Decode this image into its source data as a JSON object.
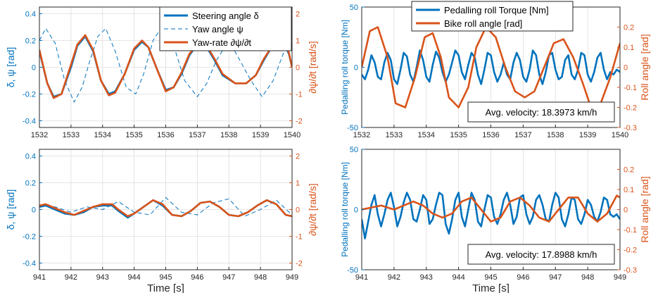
{
  "colors": {
    "blue": "#0072BD",
    "orange": "#D95319",
    "grid": "#DCDCDC",
    "axis": "#262626"
  },
  "xlabel_text": "Time [s]",
  "chart_data": [
    {
      "type": "line",
      "xlim": [
        1532,
        1540
      ],
      "xticks": [
        "1532",
        "1533",
        "1534",
        "1535",
        "1536",
        "1537",
        "1538",
        "1539",
        "1540"
      ],
      "ylim_left": [
        -0.45,
        0.45
      ],
      "yticks_left": [
        "0.4",
        "0.2",
        "0",
        "-0.2",
        "-0.4"
      ],
      "ylabel_left": "δ, ψ [rad]",
      "ylim_right": [
        -2.25,
        2.25
      ],
      "yticks_right": [
        "2",
        "1",
        "0",
        "-1",
        "-2"
      ],
      "ylabel_right": "∂ψ/∂t [rad/s]",
      "xlabel": "",
      "grid": true,
      "legend_position": "top-right",
      "series": [
        {
          "name": "Steering angle δ",
          "axis": "left",
          "style": "solid-blue",
          "x": [
            1532,
            1532.25,
            1532.45,
            1532.7,
            1533,
            1533.2,
            1533.45,
            1533.7,
            1533.95,
            1534.2,
            1534.4,
            1534.7,
            1535,
            1535.25,
            1535.45,
            1535.7,
            1536,
            1536.25,
            1536.5,
            1536.75,
            1537,
            1537.25,
            1537.55,
            1537.8,
            1538.2,
            1538.55,
            1538.85,
            1539.1,
            1539.4,
            1539.7,
            1539.9,
            1540
          ],
          "y": [
            0.12,
            -0.12,
            -0.22,
            -0.2,
            0.0,
            0.16,
            0.23,
            0.12,
            -0.1,
            -0.2,
            -0.18,
            -0.05,
            0.13,
            0.19,
            0.15,
            0.0,
            -0.17,
            -0.15,
            -0.05,
            0.09,
            0.17,
            0.17,
            0.05,
            -0.06,
            -0.12,
            -0.12,
            -0.06,
            0.05,
            0.17,
            0.2,
            0.1,
            0.0
          ]
        },
        {
          "name": "Yaw angle ψ",
          "axis": "left",
          "style": "dashed-blue",
          "x": [
            1532,
            1532.2,
            1532.5,
            1532.8,
            1533.1,
            1533.35,
            1533.6,
            1533.85,
            1534.1,
            1534.4,
            1534.75,
            1535.05,
            1535.3,
            1535.6,
            1535.9,
            1536.2,
            1536.6,
            1537,
            1537.3,
            1537.6,
            1538,
            1538.35,
            1538.7,
            1539.05,
            1539.4,
            1539.75,
            1540
          ],
          "y": [
            0.2,
            0.29,
            0.18,
            -0.1,
            -0.26,
            -0.15,
            0.05,
            0.23,
            0.29,
            0.12,
            -0.15,
            -0.2,
            -0.05,
            0.2,
            0.31,
            0.2,
            -0.1,
            -0.22,
            -0.12,
            0.05,
            0.2,
            0.05,
            -0.1,
            -0.22,
            -0.1,
            0.12,
            0.34
          ]
        },
        {
          "name": "Yaw-rate ∂ψ/∂t",
          "axis": "right",
          "style": "solid-orange",
          "x": [
            1532,
            1532.25,
            1532.45,
            1532.7,
            1533,
            1533.2,
            1533.45,
            1533.7,
            1533.95,
            1534.2,
            1534.4,
            1534.7,
            1535,
            1535.25,
            1535.45,
            1535.7,
            1536,
            1536.25,
            1536.5,
            1536.75,
            1537,
            1537.25,
            1537.55,
            1537.8,
            1538.2,
            1538.55,
            1538.85,
            1539.1,
            1539.4,
            1539.7,
            1539.9,
            1540
          ],
          "y": [
            0.65,
            -0.6,
            -1.15,
            -1.0,
            0.1,
            0.85,
            1.2,
            0.65,
            -0.5,
            -1.05,
            -0.95,
            -0.25,
            0.7,
            1.0,
            0.75,
            0.0,
            -0.9,
            -0.75,
            -0.2,
            0.5,
            0.85,
            0.9,
            0.3,
            -0.25,
            -0.6,
            -0.6,
            -0.3,
            0.3,
            0.85,
            1.05,
            0.55,
            0.0
          ]
        }
      ]
    },
    {
      "type": "line",
      "xlim": [
        1532,
        1540
      ],
      "xticks": [
        "1532",
        "1533",
        "1534",
        "1535",
        "1536",
        "1537",
        "1538",
        "1539",
        "1540"
      ],
      "ylim_left": [
        -50,
        50
      ],
      "yticks_left": [
        "50",
        "0",
        "-50"
      ],
      "ylabel_left": "Pedalling roll torque [Nm]",
      "ylim_right": [
        -0.3,
        0.3
      ],
      "yticks_right": [
        "0.2",
        "0.1",
        "0",
        "-0.1",
        "-0.2",
        "-0.3"
      ],
      "ylabel_right": "Roll angle [rad]",
      "xlabel": "",
      "grid": true,
      "legend_position": "top",
      "annotation": "Avg. velocity: 18.3973 km/h",
      "series": [
        {
          "name": "Pedalling roll Torque [Nm]",
          "axis": "left",
          "style": "solid-blue",
          "x": [
            1532,
            1532.1,
            1532.2,
            1532.3,
            1532.4,
            1532.5,
            1532.6,
            1532.7,
            1532.8,
            1532.9,
            1533,
            1533.1,
            1533.2,
            1533.3,
            1533.4,
            1533.5,
            1533.6,
            1533.7,
            1533.8,
            1533.9,
            1534,
            1534.1,
            1534.2,
            1534.3,
            1534.4,
            1534.5,
            1534.6,
            1534.7,
            1534.8,
            1534.9,
            1535,
            1535.1,
            1535.2,
            1535.3,
            1535.4,
            1535.5,
            1535.6,
            1535.7,
            1535.8,
            1535.9,
            1536,
            1536.1,
            1536.2,
            1536.3,
            1536.4,
            1536.5,
            1536.6,
            1536.7,
            1536.8,
            1536.9,
            1537,
            1537.1,
            1537.2,
            1537.3,
            1537.4,
            1537.5,
            1537.6,
            1537.7,
            1537.8,
            1537.9,
            1538,
            1538.1,
            1538.2,
            1538.3,
            1538.4,
            1538.5,
            1538.6,
            1538.7,
            1538.8,
            1538.9,
            1539,
            1539.1,
            1539.2,
            1539.3,
            1539.4,
            1539.5,
            1539.6,
            1539.7,
            1539.8,
            1539.9,
            1540
          ],
          "y": [
            -6,
            -10,
            -2,
            10,
            4,
            -8,
            -10,
            4,
            12,
            6,
            -10,
            -14,
            -2,
            12,
            9,
            -6,
            -12,
            0,
            14,
            6,
            -8,
            -12,
            2,
            13,
            8,
            -4,
            -12,
            -6,
            4,
            14,
            10,
            -4,
            -10,
            2,
            12,
            8,
            -6,
            -14,
            -2,
            12,
            10,
            -4,
            -12,
            -6,
            4,
            -6,
            -10,
            4,
            12,
            6,
            -8,
            -12,
            -2,
            14,
            10,
            -6,
            -14,
            -4,
            10,
            12,
            -2,
            -10,
            -8,
            6,
            10,
            -6,
            -10,
            -2,
            12,
            10,
            -6,
            -12,
            -4,
            8,
            12,
            -2,
            -10,
            -4,
            -6,
            -2,
            -4
          ]
        },
        {
          "name": "Bike roll angle [rad]",
          "axis": "right",
          "style": "solid-orange",
          "x": [
            1532,
            1532.25,
            1532.5,
            1532.8,
            1533.05,
            1533.35,
            1533.65,
            1533.95,
            1534.2,
            1534.45,
            1534.7,
            1535,
            1535.3,
            1535.55,
            1535.85,
            1536.15,
            1536.45,
            1536.75,
            1537.05,
            1537.35,
            1537.65,
            1537.95,
            1538.25,
            1538.55,
            1538.85,
            1539.1,
            1539.4,
            1539.7,
            1540
          ],
          "y": [
            0.0,
            0.18,
            0.2,
            0.05,
            -0.18,
            -0.2,
            -0.05,
            0.15,
            0.17,
            0.05,
            -0.15,
            -0.2,
            -0.1,
            0.1,
            0.2,
            0.15,
            0.0,
            -0.12,
            -0.15,
            -0.12,
            0.0,
            0.12,
            0.14,
            0.05,
            -0.08,
            -0.2,
            -0.18,
            -0.05,
            0.12
          ]
        }
      ]
    },
    {
      "type": "line",
      "xlim": [
        941,
        949
      ],
      "xticks": [
        "941",
        "942",
        "943",
        "944",
        "945",
        "946",
        "947",
        "948",
        "949"
      ],
      "ylim_left": [
        -0.45,
        0.45
      ],
      "yticks_left": [
        "0.4",
        "0.2",
        "0",
        "-0.2",
        "-0.4"
      ],
      "ylabel_left": "δ, ψ [rad]",
      "ylim_right": [
        -2.25,
        2.25
      ],
      "yticks_right": [
        "2",
        "1",
        "0",
        "-1",
        "-2"
      ],
      "ylabel_right": "∂ψ/∂t [rad/s]",
      "xlabel": "Time [s]",
      "grid": true,
      "series": [
        {
          "name": "Steering angle δ",
          "axis": "left",
          "style": "solid-blue",
          "x": [
            941,
            941.2,
            941.5,
            941.8,
            942.1,
            942.4,
            942.7,
            943,
            943.3,
            943.5,
            943.8,
            944,
            944.3,
            944.6,
            944.9,
            945.2,
            945.5,
            945.8,
            946.1,
            946.4,
            946.7,
            947,
            947.3,
            947.6,
            947.9,
            948.2,
            948.5,
            948.8,
            949
          ],
          "y": [
            0.02,
            0.03,
            0.0,
            -0.03,
            -0.04,
            -0.02,
            0.02,
            0.03,
            0.03,
            -0.01,
            -0.06,
            -0.03,
            0.02,
            0.07,
            0.03,
            -0.04,
            -0.05,
            -0.01,
            0.05,
            0.06,
            0.02,
            -0.04,
            -0.05,
            -0.02,
            0.03,
            0.07,
            0.04,
            -0.04,
            -0.05
          ]
        },
        {
          "name": "Yaw angle ψ",
          "axis": "left",
          "style": "dashed-blue",
          "x": [
            941,
            941.5,
            942,
            942.5,
            943,
            943.5,
            944,
            944.5,
            945,
            945.5,
            946,
            946.5,
            947,
            947.5,
            948,
            948.5,
            949
          ],
          "y": [
            0.03,
            0.02,
            -0.02,
            0.02,
            0.0,
            0.06,
            -0.02,
            -0.04,
            0.09,
            -0.02,
            -0.04,
            0.05,
            0.08,
            -0.05,
            0.0,
            0.07,
            -0.04
          ]
        },
        {
          "name": "Yaw-rate ∂ψ/∂t",
          "axis": "right",
          "style": "solid-orange",
          "x": [
            941,
            941.2,
            941.5,
            941.8,
            942.1,
            942.4,
            942.7,
            943,
            943.3,
            943.5,
            943.8,
            944,
            944.3,
            944.6,
            944.9,
            945.2,
            945.5,
            945.8,
            946.1,
            946.4,
            946.7,
            947,
            947.3,
            947.6,
            947.9,
            948.2,
            948.5,
            948.8,
            949
          ],
          "y": [
            0.15,
            0.2,
            0.05,
            -0.1,
            -0.2,
            -0.05,
            0.1,
            0.2,
            0.2,
            0.0,
            -0.25,
            -0.15,
            0.1,
            0.35,
            0.2,
            -0.2,
            -0.25,
            -0.05,
            0.25,
            0.3,
            0.1,
            -0.2,
            -0.25,
            -0.1,
            0.15,
            0.35,
            0.2,
            -0.2,
            -0.25
          ]
        }
      ]
    },
    {
      "type": "line",
      "xlim": [
        941,
        949
      ],
      "xticks": [
        "941",
        "942",
        "943",
        "944",
        "945",
        "946",
        "947",
        "948",
        "949"
      ],
      "ylim_left": [
        -50,
        50
      ],
      "yticks_left": [
        "50",
        "0",
        "-50"
      ],
      "ylabel_left": "Pedalling roll torque [Nm]",
      "ylim_right": [
        -0.3,
        0.3
      ],
      "yticks_right": [
        "0.2",
        "0.1",
        "0",
        "-0.1",
        "-0.2",
        "-0.3"
      ],
      "ylabel_right": "Roll angle [rad]",
      "xlabel": "Time [s]",
      "grid": true,
      "annotation": "Avg. velocity: 17.8988 km/h",
      "series": [
        {
          "name": "Pedalling roll Torque [Nm]",
          "axis": "left",
          "style": "solid-blue",
          "x": [
            941,
            941.1,
            941.2,
            941.3,
            941.4,
            941.5,
            941.6,
            941.7,
            941.8,
            941.9,
            942,
            942.1,
            942.2,
            942.3,
            942.4,
            942.5,
            942.6,
            942.7,
            942.8,
            942.9,
            943,
            943.1,
            943.2,
            943.3,
            943.4,
            943.5,
            943.6,
            943.7,
            943.8,
            943.9,
            944,
            944.1,
            944.2,
            944.3,
            944.4,
            944.5,
            944.6,
            944.7,
            944.8,
            944.9,
            945,
            945.1,
            945.2,
            945.3,
            945.4,
            945.5,
            945.6,
            945.7,
            945.8,
            945.9,
            946,
            946.1,
            946.2,
            946.3,
            946.4,
            946.5,
            946.6,
            946.7,
            946.8,
            946.9,
            947,
            947.1,
            947.2,
            947.3,
            947.4,
            947.5,
            947.6,
            947.7,
            947.8,
            947.9,
            948,
            948.1,
            948.2,
            948.3,
            948.4,
            948.5,
            948.6,
            948.7,
            948.8,
            948.9,
            949
          ],
          "y": [
            -8,
            -24,
            -10,
            4,
            12,
            -4,
            -14,
            -4,
            8,
            14,
            2,
            -14,
            -6,
            6,
            14,
            8,
            -8,
            -10,
            0,
            12,
            8,
            -12,
            -8,
            4,
            14,
            12,
            -12,
            -20,
            -8,
            8,
            14,
            -6,
            -14,
            0,
            14,
            8,
            -10,
            -14,
            0,
            12,
            10,
            -6,
            -12,
            -4,
            8,
            14,
            4,
            -12,
            -6,
            10,
            12,
            -4,
            -12,
            -6,
            8,
            12,
            4,
            -8,
            -10,
            4,
            14,
            10,
            -8,
            -14,
            -4,
            10,
            8,
            -8,
            -12,
            -4,
            8,
            4,
            -6,
            -10,
            -2,
            10,
            8,
            -4,
            -6,
            -4,
            -8
          ]
        },
        {
          "name": "Bike roll angle [rad]",
          "axis": "right",
          "style": "solid-orange",
          "x": [
            941,
            941.3,
            941.6,
            942,
            942.3,
            942.6,
            942.9,
            943.2,
            943.5,
            943.8,
            944.1,
            944.4,
            944.7,
            945,
            945.3,
            945.6,
            945.9,
            946.2,
            946.5,
            946.8,
            947.1,
            947.4,
            947.7,
            948,
            948.3,
            948.6,
            948.9,
            949
          ],
          "y": [
            0.0,
            0.01,
            0.02,
            0.0,
            0.02,
            0.04,
            0.02,
            -0.02,
            -0.04,
            -0.02,
            0.04,
            0.06,
            0.0,
            -0.06,
            -0.04,
            0.04,
            0.06,
            0.02,
            -0.04,
            -0.06,
            0.0,
            0.06,
            0.06,
            -0.02,
            -0.06,
            -0.02,
            0.07,
            0.06
          ]
        }
      ]
    }
  ]
}
